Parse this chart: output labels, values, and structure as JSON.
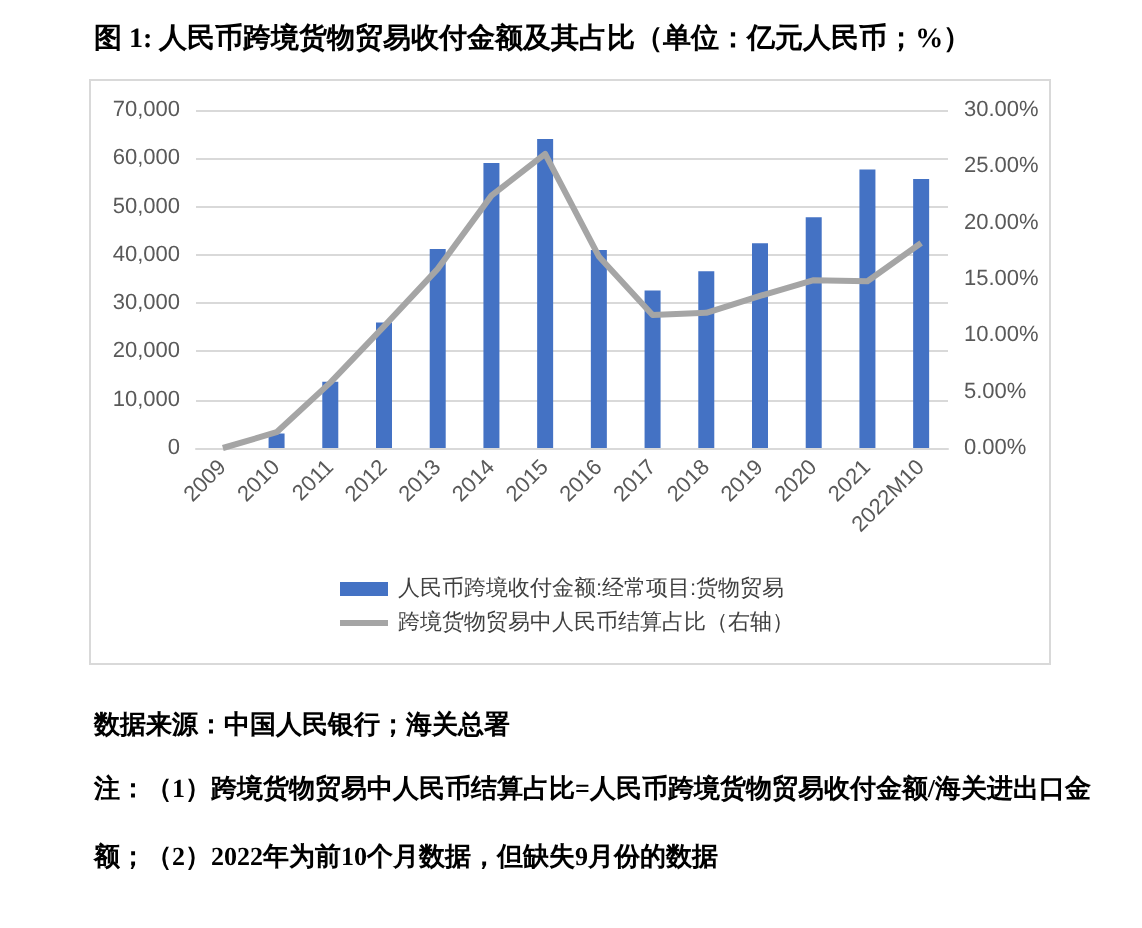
{
  "chart_data": {
    "type": "bar",
    "title": "图 1: 人民币跨境货物贸易收付金额及其占比（单位：亿元人民币；%）",
    "categories": [
      "2009",
      "2010",
      "2011",
      "2012",
      "2013",
      "2014",
      "2015",
      "2016",
      "2017",
      "2018",
      "2019",
      "2020",
      "2021",
      "2022M10"
    ],
    "series": [
      {
        "name": "人民币跨境收付金额:经常项目:货物贸易",
        "color": "#4472c4",
        "values": [
          0,
          3000,
          13700,
          26000,
          41200,
          59000,
          64000,
          41000,
          32600,
          36600,
          42400,
          47800,
          57700,
          55700
        ]
      },
      {
        "name": "跨境货物贸易中人民币结算占比（右轴）",
        "type": "line",
        "axis": "y2",
        "color": "#a5a5a5",
        "values": [
          0,
          1.4,
          5.8,
          10.8,
          15.9,
          22.4,
          26.1,
          17.0,
          11.8,
          12.0,
          13.5,
          14.9,
          14.8,
          18.2
        ]
      }
    ],
    "ylim": [
      0,
      70000
    ],
    "yticks": [
      {
        "value": 0,
        "label": "0"
      },
      {
        "value": 10000,
        "label": "10,000"
      },
      {
        "value": 20000,
        "label": "20,000"
      },
      {
        "value": 30000,
        "label": "30,000"
      },
      {
        "value": 40000,
        "label": "40,000"
      },
      {
        "value": 50000,
        "label": "50,000"
      },
      {
        "value": 60000,
        "label": "60,000"
      },
      {
        "value": 70000,
        "label": "70,000"
      }
    ],
    "y2lim": [
      0,
      30
    ],
    "y2ticks": [
      {
        "value": 0,
        "label": "0.00%"
      },
      {
        "value": 5,
        "label": "5.00%"
      },
      {
        "value": 10,
        "label": "10.00%"
      },
      {
        "value": 15,
        "label": "15.00%"
      },
      {
        "value": 20,
        "label": "20.00%"
      },
      {
        "value": 25,
        "label": "25.00%"
      },
      {
        "value": 30,
        "label": "30.00%"
      }
    ],
    "grid": "y",
    "legend": "bottom",
    "marker": "none",
    "annotations": [
      "数据来源：中国人民银行；海关总署",
      "注：（1）跨境货物贸易中人民币结算占比=人民币跨境货物贸易收付金额/海关进出口金额；（2）2022年为前10个月数据，但缺失9月份的数据"
    ]
  }
}
